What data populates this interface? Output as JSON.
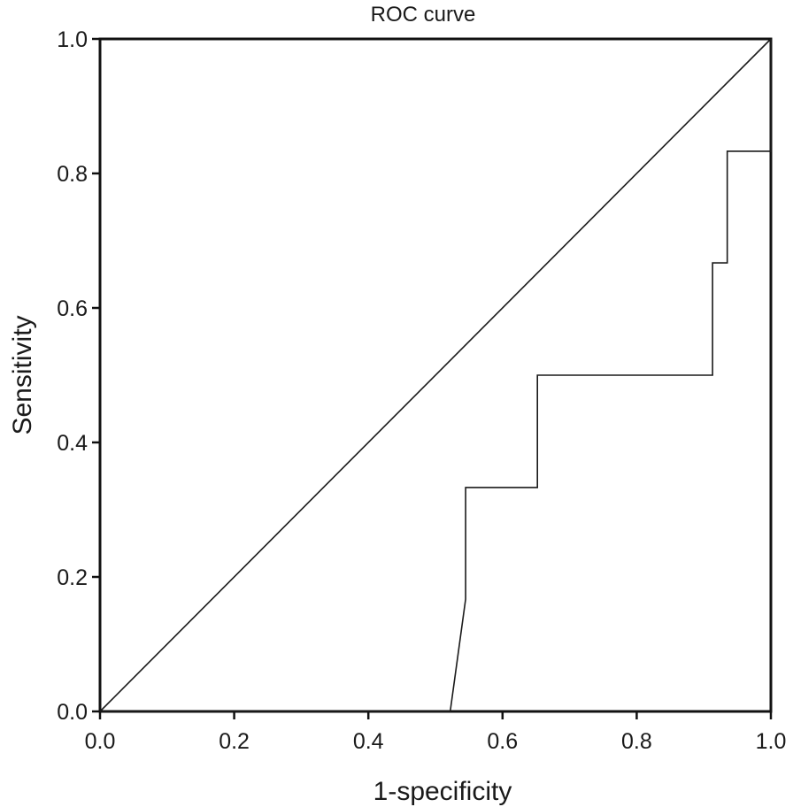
{
  "chart_data": {
    "type": "line",
    "title": "ROC curve",
    "xlabel": "1-specificity",
    "ylabel": "Sensitivity",
    "xlim": [
      0,
      1
    ],
    "ylim": [
      0,
      1
    ],
    "x_ticks": [
      "0.0",
      "0.2",
      "0.4",
      "0.6",
      "0.8",
      "1.0"
    ],
    "y_ticks": [
      "0.0",
      "0.2",
      "0.4",
      "0.6",
      "0.8",
      "1.0"
    ],
    "grid": false,
    "legend": "none",
    "series": [
      {
        "x": [
          0,
          0.522,
          0.545,
          0.545,
          0.652,
          0.652,
          0.913,
          0.913,
          0.935,
          0.935,
          1.0,
          1.0
        ],
        "y": [
          0,
          0,
          0.167,
          0.333,
          0.333,
          0.5,
          0.5,
          0.667,
          0.667,
          0.833,
          0.833,
          1.0
        ],
        "color": "#1a1a1a"
      },
      {
        "x": [
          0,
          1
        ],
        "y": [
          0,
          1
        ],
        "color": "#1a1a1a"
      }
    ]
  }
}
